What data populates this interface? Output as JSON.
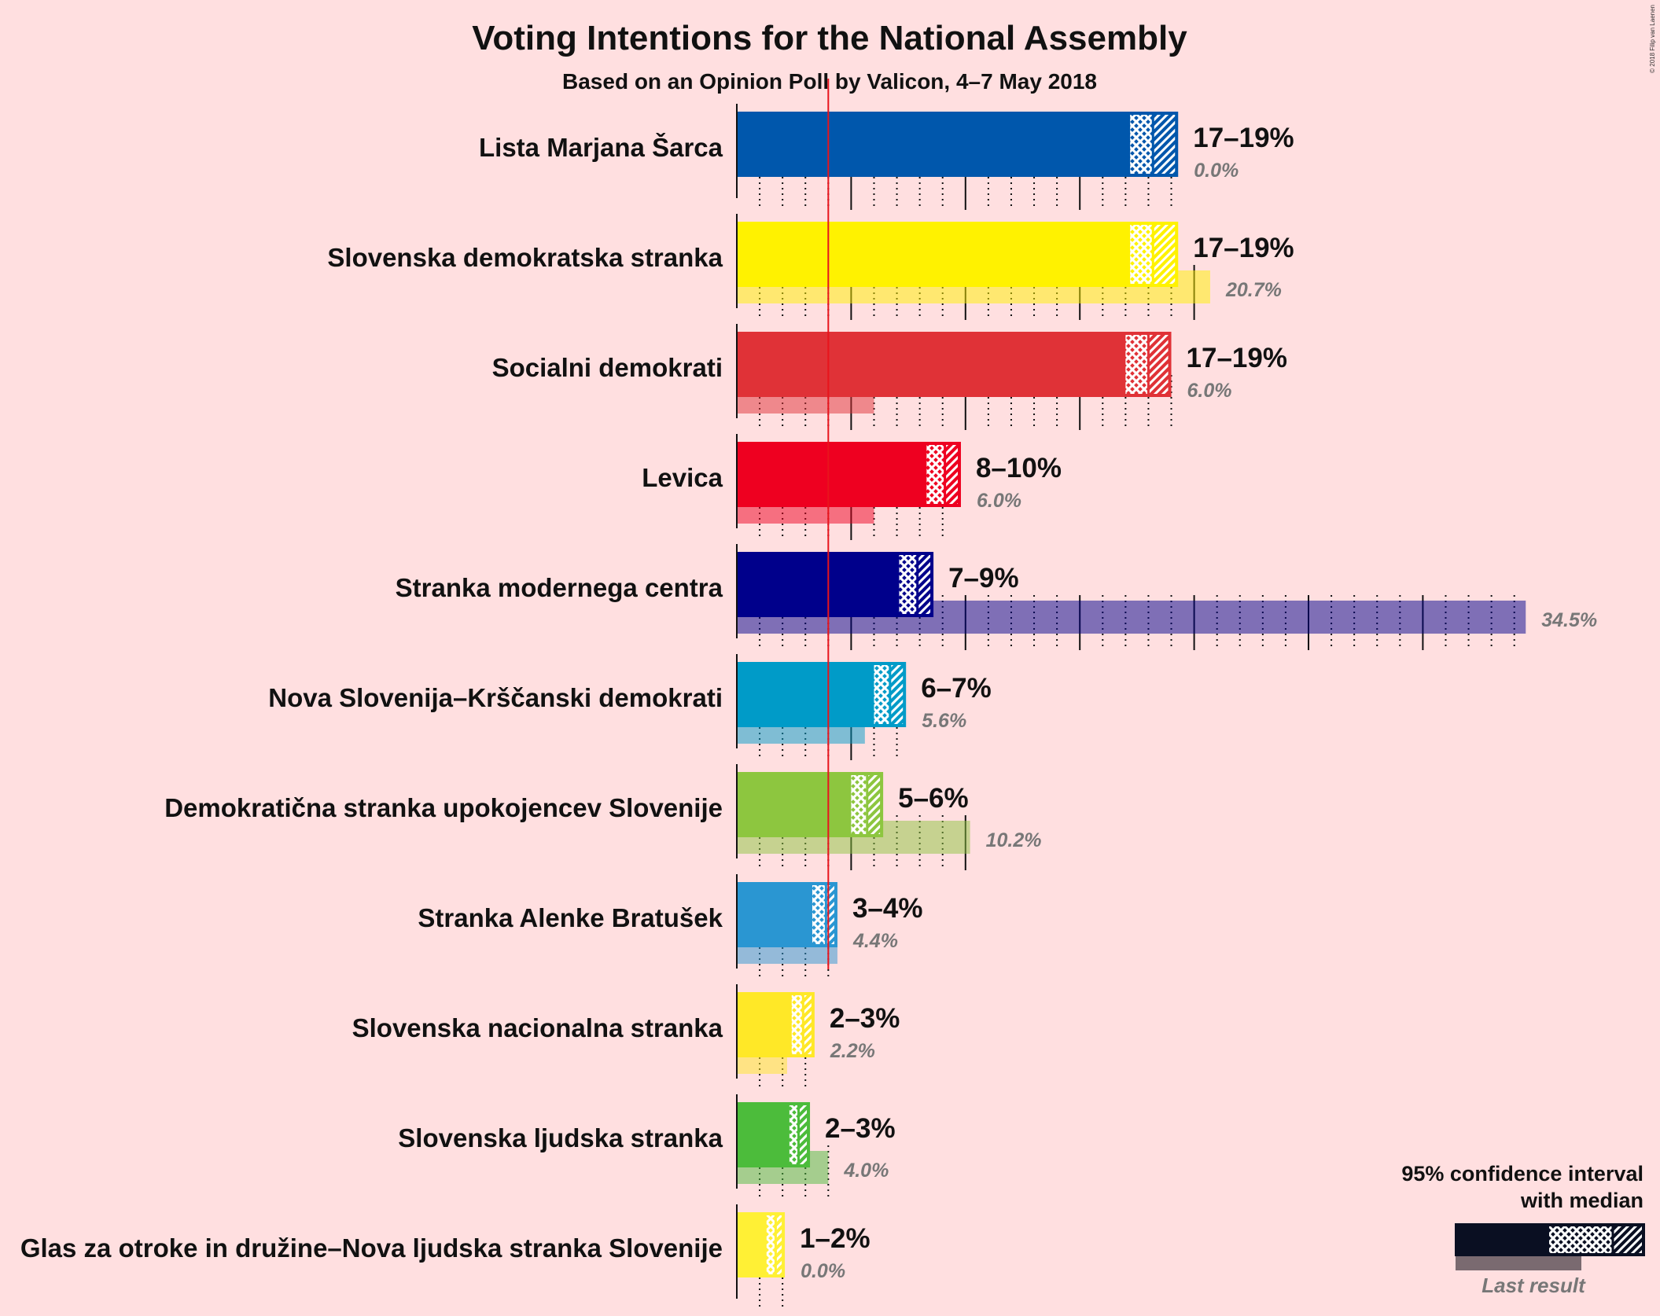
{
  "chart_data": {
    "type": "bar",
    "title": "Voting Intentions for the National Assembly",
    "subtitle": "Based on an Opinion Poll by Valicon, 4–7 May 2018",
    "copyright": "© 2018 Filip van Laenen",
    "threshold_percent": 4,
    "xlim": [
      0,
      36
    ],
    "series": [
      {
        "party": "Lista Marjana Šarca",
        "color": "#0057AC",
        "ci_low": 17.2,
        "median": 18.2,
        "ci_high": 19.3,
        "range_label": "17–19%",
        "last_result": 0.0,
        "last_label": "0.0%"
      },
      {
        "party": "Slovenska demokratska stranka",
        "color": "#FFF200",
        "ci_low": 17.2,
        "median": 18.2,
        "ci_high": 19.3,
        "range_label": "17–19%",
        "last_result": 20.7,
        "last_label": "20.7%"
      },
      {
        "party": "Socialni demokrati",
        "color": "#E03237",
        "ci_low": 17.0,
        "median": 18.0,
        "ci_high": 19.0,
        "range_label": "17–19%",
        "last_result": 6.0,
        "last_label": "6.0%"
      },
      {
        "party": "Levica",
        "color": "#EE0020",
        "ci_low": 8.3,
        "median": 9.1,
        "ci_high": 9.8,
        "range_label": "8–10%",
        "last_result": 6.0,
        "last_label": "6.0%"
      },
      {
        "party": "Stranka modernega centra",
        "color": "#00008B",
        "ci_low": 7.1,
        "median": 7.9,
        "ci_high": 8.6,
        "range_label": "7–9%",
        "last_result": 34.5,
        "last_label": "34.5%"
      },
      {
        "party": "Nova Slovenija–Krščanski demokrati",
        "color": "#009BC8",
        "ci_low": 6.0,
        "median": 6.7,
        "ci_high": 7.4,
        "range_label": "6–7%",
        "last_result": 5.6,
        "last_label": "5.6%"
      },
      {
        "party": "Demokratična stranka upokojencev Slovenije",
        "color": "#8DC63F",
        "ci_low": 5.0,
        "median": 5.7,
        "ci_high": 6.4,
        "range_label": "5–6%",
        "last_result": 10.2,
        "last_label": "10.2%"
      },
      {
        "party": "Stranka Alenke Bratušek",
        "color": "#2A96D2",
        "ci_low": 3.3,
        "median": 3.9,
        "ci_high": 4.4,
        "range_label": "3–4%",
        "last_result": 4.4,
        "last_label": "4.4%"
      },
      {
        "party": "Slovenska nacionalna stranka",
        "color": "#FFE827",
        "ci_low": 2.4,
        "median": 2.9,
        "ci_high": 3.4,
        "range_label": "2–3%",
        "last_result": 2.2,
        "last_label": "2.2%"
      },
      {
        "party": "Slovenska ljudska stranka",
        "color": "#4CBC3B",
        "ci_low": 2.3,
        "median": 2.7,
        "ci_high": 3.2,
        "range_label": "2–3%",
        "last_result": 4.0,
        "last_label": "4.0%"
      },
      {
        "party": "Glas za otroke in družine–Nova ljudska stranka Slovenije",
        "color": "#FFF035",
        "ci_low": 1.3,
        "median": 1.7,
        "ci_high": 2.1,
        "range_label": "1–2%",
        "last_result": 0.0,
        "last_label": "0.0%"
      }
    ],
    "legend": {
      "line1": "95% confidence interval",
      "line2": "with median",
      "last": "Last result"
    }
  }
}
